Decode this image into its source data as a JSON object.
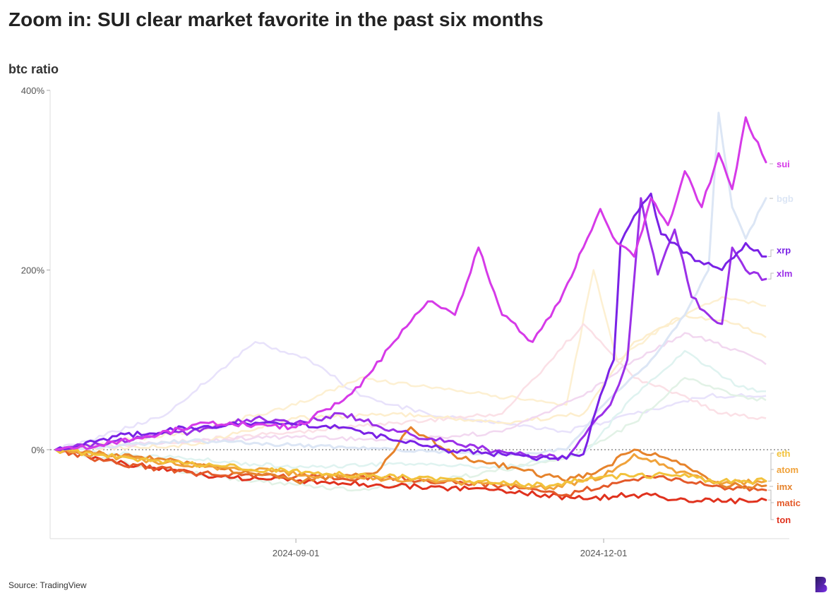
{
  "page": {
    "title": "Zoom in: SUI clear market favorite in the past six months",
    "source": "Source: TradingView",
    "logo_icon": "brand-logo-icon"
  },
  "chart_data": {
    "type": "line",
    "title": "Zoom in: SUI clear market favorite in the past six months",
    "ylabel": "btc ratio",
    "xlabel": "",
    "x_range": [
      "2024-06-22",
      "2025-01-18"
    ],
    "ylim": [
      -100,
      400
    ],
    "y_ticks": [
      0,
      200,
      400
    ],
    "y_tick_labels": [
      "0%",
      "200%",
      "400%"
    ],
    "x_ticks": [
      "2024-09-01",
      "2024-12-01"
    ],
    "x_tick_labels": [
      "2024-09-01",
      "2024-12-01"
    ],
    "zero_line": "dotted",
    "grid": false,
    "legend": "end-of-line labels",
    "highlighted_series": [
      {
        "name": "sui",
        "color": "#d63ae8",
        "points": [
          [
            "2024-06-22",
            0
          ],
          [
            "2024-07-05",
            5
          ],
          [
            "2024-07-20",
            15
          ],
          [
            "2024-08-05",
            30
          ],
          [
            "2024-08-20",
            28
          ],
          [
            "2024-09-01",
            25
          ],
          [
            "2024-09-10",
            45
          ],
          [
            "2024-09-20",
            70
          ],
          [
            "2024-09-30",
            120
          ],
          [
            "2024-10-10",
            165
          ],
          [
            "2024-10-18",
            150
          ],
          [
            "2024-10-25",
            225
          ],
          [
            "2024-11-01",
            150
          ],
          [
            "2024-11-10",
            120
          ],
          [
            "2024-11-18",
            165
          ],
          [
            "2024-11-25",
            225
          ],
          [
            "2024-11-30",
            268
          ],
          [
            "2024-12-05",
            230
          ],
          [
            "2024-12-10",
            215
          ],
          [
            "2024-12-15",
            280
          ],
          [
            "2024-12-20",
            250
          ],
          [
            "2024-12-25",
            310
          ],
          [
            "2024-12-30",
            270
          ],
          [
            "2025-01-04",
            330
          ],
          [
            "2025-01-08",
            290
          ],
          [
            "2025-01-12",
            370
          ],
          [
            "2025-01-18",
            320
          ]
        ]
      },
      {
        "name": "bgb",
        "color": "#dce6f5",
        "points": [
          [
            "2024-06-22",
            0
          ],
          [
            "2024-08-01",
            10
          ],
          [
            "2024-09-01",
            5
          ],
          [
            "2024-10-01",
            0
          ],
          [
            "2024-11-01",
            -5
          ],
          [
            "2024-11-20",
            0
          ],
          [
            "2024-12-01",
            50
          ],
          [
            "2024-12-15",
            100
          ],
          [
            "2024-12-25",
            150
          ],
          [
            "2025-01-01",
            200
          ],
          [
            "2025-01-04",
            375
          ],
          [
            "2025-01-08",
            270
          ],
          [
            "2025-01-12",
            235
          ],
          [
            "2025-01-18",
            280
          ]
        ]
      },
      {
        "name": "xrp",
        "color": "#7a22e6",
        "points": [
          [
            "2024-06-22",
            0
          ],
          [
            "2024-07-10",
            15
          ],
          [
            "2024-08-01",
            25
          ],
          [
            "2024-08-20",
            30
          ],
          [
            "2024-09-01",
            28
          ],
          [
            "2024-09-15",
            25
          ],
          [
            "2024-10-01",
            10
          ],
          [
            "2024-10-15",
            0
          ],
          [
            "2024-11-01",
            -5
          ],
          [
            "2024-11-15",
            -10
          ],
          [
            "2024-11-25",
            -5
          ],
          [
            "2024-11-30",
            60
          ],
          [
            "2024-12-04",
            100
          ],
          [
            "2024-12-06",
            230
          ],
          [
            "2024-12-10",
            260
          ],
          [
            "2024-12-15",
            285
          ],
          [
            "2024-12-18",
            240
          ],
          [
            "2024-12-22",
            230
          ],
          [
            "2024-12-28",
            210
          ],
          [
            "2025-01-05",
            200
          ],
          [
            "2025-01-12",
            230
          ],
          [
            "2025-01-18",
            215
          ]
        ]
      },
      {
        "name": "xlm",
        "color": "#9b30e8",
        "points": [
          [
            "2024-06-22",
            0
          ],
          [
            "2024-07-10",
            10
          ],
          [
            "2024-08-01",
            20
          ],
          [
            "2024-08-20",
            35
          ],
          [
            "2024-09-01",
            30
          ],
          [
            "2024-09-15",
            40
          ],
          [
            "2024-10-01",
            20
          ],
          [
            "2024-10-20",
            5
          ],
          [
            "2024-11-05",
            -5
          ],
          [
            "2024-11-20",
            -10
          ],
          [
            "2024-11-28",
            30
          ],
          [
            "2024-12-03",
            50
          ],
          [
            "2024-12-08",
            100
          ],
          [
            "2024-12-12",
            280
          ],
          [
            "2024-12-17",
            195
          ],
          [
            "2024-12-22",
            245
          ],
          [
            "2024-12-27",
            170
          ],
          [
            "2025-01-01",
            150
          ],
          [
            "2025-01-05",
            140
          ],
          [
            "2025-01-08",
            225
          ],
          [
            "2025-01-12",
            200
          ],
          [
            "2025-01-18",
            190
          ]
        ]
      },
      {
        "name": "eth",
        "color": "#f2c23c",
        "points": [
          [
            "2024-06-22",
            0
          ],
          [
            "2024-07-15",
            -10
          ],
          [
            "2024-08-15",
            -20
          ],
          [
            "2024-09-15",
            -28
          ],
          [
            "2024-10-15",
            -32
          ],
          [
            "2024-11-15",
            -40
          ],
          [
            "2024-12-01",
            -30
          ],
          [
            "2024-12-20",
            -28
          ],
          [
            "2025-01-05",
            -35
          ],
          [
            "2025-01-18",
            -35
          ]
        ]
      },
      {
        "name": "atom",
        "color": "#f0a23a",
        "points": [
          [
            "2024-06-22",
            0
          ],
          [
            "2024-07-15",
            -10
          ],
          [
            "2024-08-15",
            -22
          ],
          [
            "2024-09-15",
            -30
          ],
          [
            "2024-10-15",
            -35
          ],
          [
            "2024-11-15",
            -42
          ],
          [
            "2024-12-01",
            -30
          ],
          [
            "2024-12-10",
            -5
          ],
          [
            "2024-12-20",
            -20
          ],
          [
            "2025-01-05",
            -38
          ],
          [
            "2025-01-18",
            -35
          ]
        ]
      },
      {
        "name": "imx",
        "color": "#e6832c",
        "points": [
          [
            "2024-06-22",
            0
          ],
          [
            "2024-07-10",
            -5
          ],
          [
            "2024-08-01",
            -15
          ],
          [
            "2024-09-01",
            -35
          ],
          [
            "2024-09-25",
            -25
          ],
          [
            "2024-10-05",
            25
          ],
          [
            "2024-10-20",
            -10
          ],
          [
            "2024-11-05",
            -20
          ],
          [
            "2024-11-20",
            -35
          ],
          [
            "2024-12-01",
            -20
          ],
          [
            "2024-12-10",
            0
          ],
          [
            "2024-12-20",
            -10
          ],
          [
            "2025-01-05",
            -40
          ],
          [
            "2025-01-18",
            -40
          ]
        ]
      },
      {
        "name": "matic",
        "color": "#e45a2a",
        "points": [
          [
            "2024-06-22",
            0
          ],
          [
            "2024-07-10",
            -15
          ],
          [
            "2024-08-01",
            -25
          ],
          [
            "2024-09-01",
            -30
          ],
          [
            "2024-10-01",
            -32
          ],
          [
            "2024-11-01",
            -40
          ],
          [
            "2024-11-20",
            -50
          ],
          [
            "2024-12-01",
            -40
          ],
          [
            "2024-12-15",
            -30
          ],
          [
            "2025-01-01",
            -40
          ],
          [
            "2025-01-18",
            -45
          ]
        ]
      },
      {
        "name": "ton",
        "color": "#e0321e",
        "points": [
          [
            "2024-06-22",
            0
          ],
          [
            "2024-07-05",
            -10
          ],
          [
            "2024-07-20",
            -20
          ],
          [
            "2024-08-10",
            -30
          ],
          [
            "2024-09-01",
            -35
          ],
          [
            "2024-10-01",
            -40
          ],
          [
            "2024-11-01",
            -45
          ],
          [
            "2024-11-25",
            -55
          ],
          [
            "2024-12-10",
            -50
          ],
          [
            "2024-12-25",
            -55
          ],
          [
            "2025-01-05",
            -58
          ],
          [
            "2025-01-18",
            -56
          ]
        ]
      }
    ],
    "background_series": [
      {
        "color": "#e8e2fb",
        "points": [
          [
            "2024-06-22",
            0
          ],
          [
            "2024-07-10",
            20
          ],
          [
            "2024-07-25",
            40
          ],
          [
            "2024-08-10",
            90
          ],
          [
            "2024-08-20",
            120
          ],
          [
            "2024-09-05",
            100
          ],
          [
            "2024-09-20",
            60
          ],
          [
            "2024-10-10",
            40
          ],
          [
            "2024-11-01",
            30
          ],
          [
            "2024-11-20",
            20
          ],
          [
            "2024-12-10",
            40
          ],
          [
            "2025-01-01",
            60
          ],
          [
            "2025-01-18",
            60
          ]
        ]
      },
      {
        "color": "#fdf0d2",
        "points": [
          [
            "2024-06-22",
            0
          ],
          [
            "2024-08-01",
            20
          ],
          [
            "2024-09-01",
            50
          ],
          [
            "2024-09-20",
            80
          ],
          [
            "2024-10-10",
            70
          ],
          [
            "2024-10-30",
            60
          ],
          [
            "2024-11-20",
            50
          ],
          [
            "2024-11-28",
            200
          ],
          [
            "2024-12-05",
            100
          ],
          [
            "2024-12-20",
            140
          ],
          [
            "2025-01-05",
            170
          ],
          [
            "2025-01-18",
            160
          ]
        ]
      },
      {
        "color": "#fbe0e6",
        "points": [
          [
            "2024-06-22",
            0
          ],
          [
            "2024-08-01",
            10
          ],
          [
            "2024-09-01",
            20
          ],
          [
            "2024-10-01",
            30
          ],
          [
            "2024-11-01",
            40
          ],
          [
            "2024-11-25",
            140
          ],
          [
            "2024-12-10",
            80
          ],
          [
            "2024-12-25",
            60
          ],
          [
            "2025-01-05",
            40
          ],
          [
            "2025-01-18",
            35
          ]
        ]
      },
      {
        "color": "#fdeecd",
        "points": [
          [
            "2024-06-22",
            0
          ],
          [
            "2024-08-01",
            5
          ],
          [
            "2024-09-01",
            35
          ],
          [
            "2024-10-01",
            40
          ],
          [
            "2024-11-01",
            30
          ],
          [
            "2024-11-25",
            40
          ],
          [
            "2024-12-10",
            120
          ],
          [
            "2024-12-25",
            150
          ],
          [
            "2025-01-10",
            140
          ],
          [
            "2025-01-18",
            125
          ]
        ]
      },
      {
        "color": "#e2f2e6",
        "points": [
          [
            "2024-06-22",
            0
          ],
          [
            "2024-07-20",
            -20
          ],
          [
            "2024-08-20",
            -35
          ],
          [
            "2024-09-20",
            -45
          ],
          [
            "2024-10-20",
            -30
          ],
          [
            "2024-11-20",
            -10
          ],
          [
            "2024-12-10",
            30
          ],
          [
            "2024-12-25",
            80
          ],
          [
            "2025-01-10",
            60
          ],
          [
            "2025-01-18",
            55
          ]
        ]
      },
      {
        "color": "#dff3f0",
        "points": [
          [
            "2024-06-22",
            0
          ],
          [
            "2024-08-01",
            -10
          ],
          [
            "2024-09-01",
            -20
          ],
          [
            "2024-10-01",
            -15
          ],
          [
            "2024-11-01",
            -20
          ],
          [
            "2024-11-25",
            -5
          ],
          [
            "2024-12-10",
            60
          ],
          [
            "2024-12-25",
            110
          ],
          [
            "2025-01-10",
            70
          ],
          [
            "2025-01-18",
            65
          ]
        ]
      },
      {
        "color": "#f2d8f0",
        "points": [
          [
            "2024-06-22",
            0
          ],
          [
            "2024-08-01",
            10
          ],
          [
            "2024-09-01",
            15
          ],
          [
            "2024-10-01",
            10
          ],
          [
            "2024-11-01",
            20
          ],
          [
            "2024-11-25",
            60
          ],
          [
            "2024-12-10",
            100
          ],
          [
            "2024-12-25",
            130
          ],
          [
            "2025-01-10",
            110
          ],
          [
            "2025-01-18",
            95
          ]
        ]
      }
    ]
  }
}
